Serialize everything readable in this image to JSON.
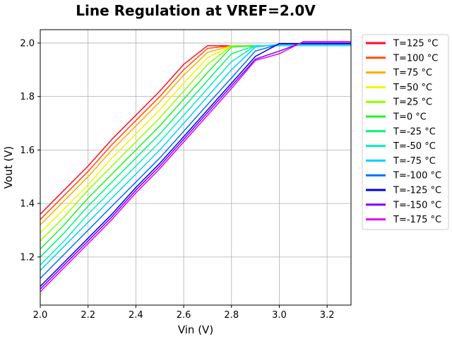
{
  "chart_data": {
    "type": "line",
    "title": "Line Regulation at VREF=2.0V",
    "xlabel": "Vin (V)",
    "ylabel": "Vout (V)",
    "xlim": [
      2.0,
      3.3
    ],
    "ylim": [
      1.02,
      2.05
    ],
    "xticks": [
      "2.0",
      "2.2",
      "2.4",
      "2.6",
      "2.8",
      "3.0",
      "3.2"
    ],
    "yticks": [
      "1.2",
      "1.4",
      "1.6",
      "1.8",
      "2.0"
    ],
    "grid": true,
    "legend_position": "outside-right",
    "x": [
      2.0,
      2.1,
      2.2,
      2.3,
      2.4,
      2.5,
      2.6,
      2.7,
      2.8,
      2.9,
      3.0,
      3.1,
      3.2,
      3.3
    ],
    "series": [
      {
        "name": "T=125 °C",
        "color": "#ff0a2a",
        "values": [
          1.36,
          1.45,
          1.54,
          1.64,
          1.73,
          1.82,
          1.92,
          1.99,
          1.99,
          1.99,
          1.99,
          1.99,
          1.99,
          1.99
        ]
      },
      {
        "name": "T=100 °C",
        "color": "#ff4d00",
        "values": [
          1.34,
          1.43,
          1.52,
          1.62,
          1.71,
          1.8,
          1.9,
          1.98,
          1.99,
          1.99,
          1.99,
          1.99,
          1.99,
          1.99
        ]
      },
      {
        "name": "T=75 °C",
        "color": "#ffab00",
        "values": [
          1.32,
          1.41,
          1.5,
          1.6,
          1.69,
          1.78,
          1.88,
          1.965,
          1.99,
          1.99,
          1.99,
          1.99,
          1.99,
          1.99
        ]
      },
      {
        "name": "T=50 °C",
        "color": "#f5f500",
        "values": [
          1.29,
          1.38,
          1.47,
          1.57,
          1.66,
          1.75,
          1.85,
          1.945,
          1.99,
          1.99,
          1.99,
          1.99,
          1.99,
          1.99
        ]
      },
      {
        "name": "T=25 °C",
        "color": "#8dff00",
        "values": [
          1.26,
          1.35,
          1.45,
          1.54,
          1.63,
          1.72,
          1.82,
          1.92,
          1.99,
          1.99,
          1.99,
          1.99,
          1.99,
          1.99
        ]
      },
      {
        "name": "T=0 °C",
        "color": "#1cf51c",
        "values": [
          1.23,
          1.32,
          1.42,
          1.51,
          1.6,
          1.69,
          1.79,
          1.89,
          1.985,
          1.99,
          1.99,
          1.99,
          1.99,
          1.99
        ]
      },
      {
        "name": "T=-25 °C",
        "color": "#00f578",
        "values": [
          1.2,
          1.29,
          1.39,
          1.48,
          1.57,
          1.66,
          1.76,
          1.86,
          1.96,
          1.99,
          1.99,
          1.99,
          1.99,
          1.99
        ]
      },
      {
        "name": "T=-50 °C",
        "color": "#00f0c0",
        "values": [
          1.17,
          1.26,
          1.36,
          1.45,
          1.54,
          1.63,
          1.73,
          1.83,
          1.93,
          1.99,
          1.99,
          1.99,
          1.99,
          1.99
        ]
      },
      {
        "name": "T=-75 °C",
        "color": "#00d0ff",
        "values": [
          1.15,
          1.24,
          1.33,
          1.42,
          1.51,
          1.6,
          1.7,
          1.8,
          1.9,
          1.985,
          1.995,
          1.995,
          1.995,
          1.995
        ]
      },
      {
        "name": "T=-100 °C",
        "color": "#0070ff",
        "values": [
          1.12,
          1.21,
          1.3,
          1.39,
          1.48,
          1.57,
          1.67,
          1.77,
          1.87,
          1.97,
          1.995,
          1.995,
          1.995,
          1.995
        ]
      },
      {
        "name": "T=-125 °C",
        "color": "#0000e0",
        "values": [
          1.09,
          1.18,
          1.27,
          1.36,
          1.46,
          1.55,
          1.65,
          1.75,
          1.85,
          1.95,
          1.998,
          1.998,
          1.998,
          1.998
        ]
      },
      {
        "name": "T=-150 °C",
        "color": "#7a00ff",
        "values": [
          1.08,
          1.17,
          1.26,
          1.35,
          1.45,
          1.54,
          1.64,
          1.74,
          1.84,
          1.94,
          1.97,
          2.003,
          2.003,
          2.003
        ]
      },
      {
        "name": "T=-175 °C",
        "color": "#e000f0",
        "values": [
          1.07,
          1.16,
          1.25,
          1.34,
          1.44,
          1.53,
          1.63,
          1.73,
          1.83,
          1.935,
          1.96,
          2.005,
          2.005,
          2.005
        ]
      }
    ]
  }
}
